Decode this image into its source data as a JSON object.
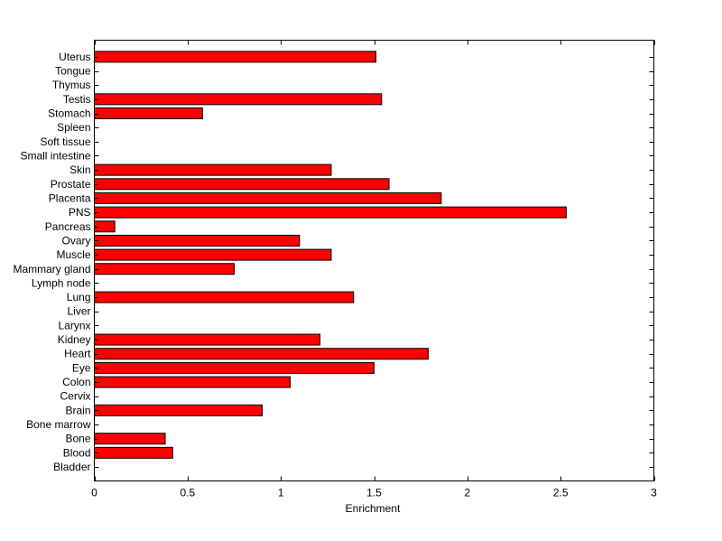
{
  "chart_data": {
    "type": "bar",
    "orientation": "horizontal",
    "title": "",
    "xlabel": "Enrichment",
    "ylabel": "",
    "xlim": [
      0,
      3
    ],
    "xticks": [
      "0",
      "0.5",
      "1",
      "1.5",
      "2",
      "2.5",
      "3"
    ],
    "grid": false,
    "bar_color": "#ff0000",
    "categories": [
      "Bladder",
      "Blood",
      "Bone",
      "Bone marrow",
      "Brain",
      "Cervix",
      "Colon",
      "Eye",
      "Heart",
      "Kidney",
      "Larynx",
      "Liver",
      "Lung",
      "Lymph node",
      "Mammary gland",
      "Muscle",
      "Ovary",
      "Pancreas",
      "PNS",
      "Placenta",
      "Prostate",
      "Skin",
      "Small intestine",
      "Soft tissue",
      "Spleen",
      "Stomach",
      "Testis",
      "Thymus",
      "Tongue",
      "Uterus"
    ],
    "values": [
      0,
      0.42,
      0.38,
      0,
      0.9,
      0,
      1.05,
      1.5,
      1.79,
      1.21,
      0,
      0,
      1.39,
      0,
      0.75,
      1.27,
      1.1,
      0.11,
      2.53,
      1.86,
      1.58,
      1.27,
      0,
      0,
      0,
      0.58,
      1.54,
      0,
      0,
      1.51
    ]
  }
}
